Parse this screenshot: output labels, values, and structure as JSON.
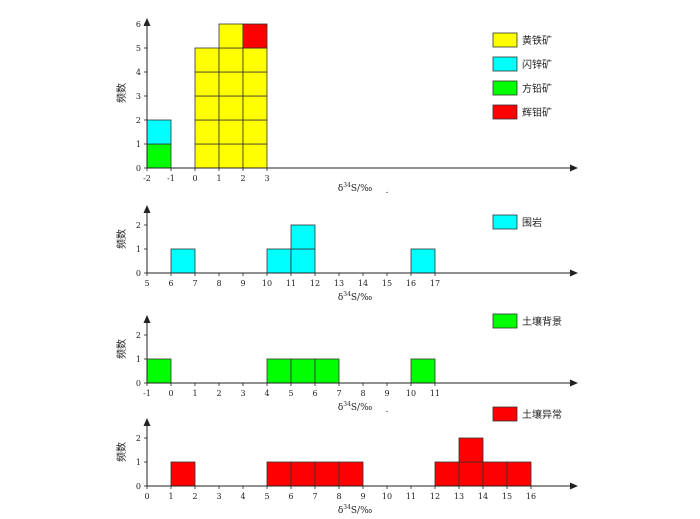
{
  "chart_data": [
    {
      "type": "bar",
      "style": "stacked unit-block histogram",
      "xlabel": "δ34S/‰",
      "ylabel": "频数",
      "x_ticks": [
        -2,
        -1,
        0,
        1,
        2,
        3
      ],
      "y_ticks": [
        0,
        1,
        2,
        3,
        4,
        5,
        6
      ],
      "xlim": [
        -2,
        3
      ],
      "ylim": [
        0,
        7
      ],
      "series": [
        {
          "name": "黄铁矿",
          "color": "#ffff00",
          "bins": [
            [
              0,
              1,
              5
            ],
            [
              1,
              2,
              6
            ],
            [
              2,
              3,
              5
            ]
          ]
        },
        {
          "name": "闪锌矿",
          "color": "#00ffff",
          "bins": [
            [
              -2,
              -1,
              1
            ]
          ]
        },
        {
          "name": "方铅矿",
          "color": "#00ff00",
          "bins": [
            [
              -2,
              -1,
              1
            ]
          ]
        },
        {
          "name": "辉钼矿",
          "color": "#ff0000",
          "bins": [
            [
              2,
              3,
              1
            ]
          ]
        }
      ],
      "stack_order": [
        "方铅矿",
        "闪锌矿",
        "黄铁矿",
        "辉钼矿"
      ],
      "extra_text": "."
    },
    {
      "type": "bar",
      "style": "stacked unit-block histogram",
      "xlabel": "δ34S/‰",
      "ylabel": "频数",
      "x_ticks": [
        5,
        6,
        7,
        8,
        9,
        10,
        11,
        12,
        13,
        14,
        15,
        16,
        17
      ],
      "y_ticks": [
        0,
        1,
        2
      ],
      "xlim": [
        5,
        17
      ],
      "ylim": [
        0,
        2.8
      ],
      "series": [
        {
          "name": "围岩",
          "color": "#00ffff",
          "bins": [
            [
              6,
              7,
              1
            ],
            [
              10,
              11,
              1
            ],
            [
              11,
              12,
              2
            ],
            [
              16,
              17,
              1
            ]
          ]
        }
      ]
    },
    {
      "type": "bar",
      "style": "stacked unit-block histogram",
      "xlabel": "δ34S/‰",
      "ylabel": "频数",
      "x_ticks": [
        -1,
        0,
        1,
        2,
        3,
        4,
        5,
        6,
        7,
        8,
        9,
        10,
        11
      ],
      "y_ticks": [
        0,
        1,
        2
      ],
      "xlim": [
        -1,
        11
      ],
      "ylim": [
        0,
        2.8
      ],
      "series": [
        {
          "name": "土壤背景",
          "color": "#00ff00",
          "bins": [
            [
              -1,
              0,
              1
            ],
            [
              4,
              5,
              1
            ],
            [
              5,
              6,
              1
            ],
            [
              6,
              7,
              1
            ],
            [
              10,
              11,
              1
            ]
          ]
        }
      ],
      "extra_text": "."
    },
    {
      "type": "bar",
      "style": "stacked unit-block histogram",
      "xlabel": "δ34S/‰",
      "ylabel": "频数",
      "x_ticks": [
        0,
        1,
        2,
        3,
        4,
        5,
        6,
        7,
        8,
        9,
        10,
        11,
        12,
        13,
        14,
        15,
        16
      ],
      "y_ticks": [
        0,
        1,
        2
      ],
      "xlim": [
        0,
        16
      ],
      "ylim": [
        0,
        2.8
      ],
      "series": [
        {
          "name": "土壤异常",
          "color": "#ff0000",
          "bins": [
            [
              1,
              2,
              1
            ],
            [
              5,
              6,
              1
            ],
            [
              6,
              7,
              1
            ],
            [
              7,
              8,
              1
            ],
            [
              8,
              9,
              1
            ],
            [
              12,
              13,
              1
            ],
            [
              13,
              14,
              2
            ],
            [
              14,
              15,
              1
            ],
            [
              15,
              16,
              1
            ]
          ]
        }
      ]
    }
  ]
}
